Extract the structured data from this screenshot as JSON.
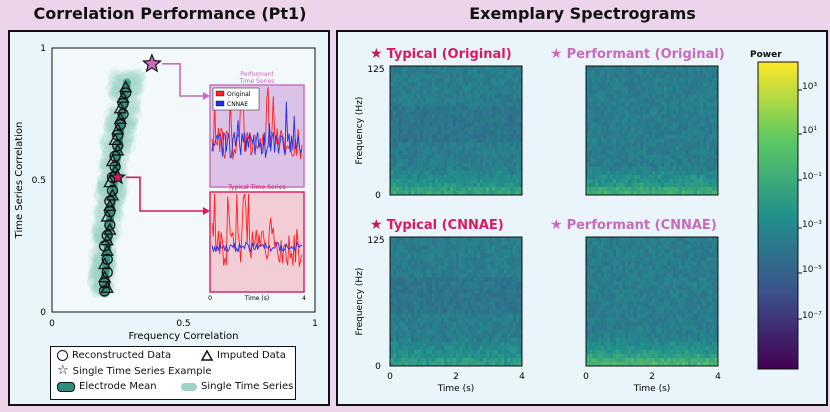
{
  "left_title": "Correlation Performance (Pt1)",
  "right_title": "Exemplary Spectrograms",
  "colors": {
    "pink": "#d81b60",
    "purple": "#c86bbd",
    "teal": "#2f8f7e",
    "cloud": "#9cd3c8",
    "orig": "#ff2020",
    "cnnae": "#2030e0"
  },
  "chart_data": [
    {
      "type": "scatter",
      "title": "Correlation Performance (Pt1)",
      "xlabel": "Frequency Correlation",
      "ylabel": "Time Series Correlation",
      "xlim": [
        0,
        1
      ],
      "ylim": [
        0,
        1
      ],
      "xticks": [
        "0",
        "0.5",
        "1"
      ],
      "yticks": [
        "0",
        "0.5",
        "1"
      ],
      "series": [
        {
          "name": "Reconstructed Data",
          "marker": "circle",
          "points": [
            [
              0.2,
              0.08
            ],
            [
              0.2,
              0.11
            ],
            [
              0.21,
              0.15
            ],
            [
              0.21,
              0.2
            ],
            [
              0.2,
              0.25
            ],
            [
              0.21,
              0.29
            ],
            [
              0.22,
              0.33
            ],
            [
              0.22,
              0.38
            ],
            [
              0.22,
              0.42
            ],
            [
              0.23,
              0.46
            ],
            [
              0.23,
              0.51
            ],
            [
              0.24,
              0.55
            ],
            [
              0.24,
              0.59
            ],
            [
              0.25,
              0.63
            ],
            [
              0.25,
              0.67
            ],
            [
              0.26,
              0.71
            ],
            [
              0.27,
              0.75
            ],
            [
              0.27,
              0.79
            ],
            [
              0.28,
              0.83
            ]
          ]
        },
        {
          "name": "Imputed Data",
          "marker": "triangle",
          "points": [
            [
              0.21,
              0.09
            ],
            [
              0.2,
              0.13
            ],
            [
              0.2,
              0.18
            ],
            [
              0.21,
              0.23
            ],
            [
              0.21,
              0.27
            ],
            [
              0.22,
              0.31
            ],
            [
              0.21,
              0.36
            ],
            [
              0.22,
              0.4
            ],
            [
              0.23,
              0.44
            ],
            [
              0.22,
              0.49
            ],
            [
              0.24,
              0.53
            ],
            [
              0.23,
              0.57
            ],
            [
              0.25,
              0.61
            ],
            [
              0.24,
              0.65
            ],
            [
              0.25,
              0.69
            ],
            [
              0.26,
              0.73
            ],
            [
              0.26,
              0.77
            ],
            [
              0.27,
              0.81
            ],
            [
              0.28,
              0.85
            ]
          ]
        }
      ],
      "examples": [
        {
          "name": "Performant",
          "x": 0.38,
          "y": 0.94,
          "color": "#c86bbd"
        },
        {
          "name": "Typical",
          "x": 0.25,
          "y": 0.51,
          "color": "#d81b60"
        }
      ],
      "legend": {
        "reconstructed": "Reconstructed Data",
        "imputed": "Imputed Data",
        "example": "Single Time Series Example",
        "mean": "Electrode Mean",
        "single": "Single Time Series"
      }
    },
    {
      "type": "line",
      "title_line1": "Performant",
      "title_line2": "Time Series",
      "legend": [
        "Original",
        "CNNAE"
      ]
    },
    {
      "type": "line",
      "title": "Typical Time Series",
      "xlabel": "Time (s)",
      "xticks": [
        "0",
        "4"
      ]
    },
    {
      "type": "heatmap",
      "colorbar_label": "Power",
      "colorbar_ticks": [
        "10³",
        "10¹",
        "10⁻¹",
        "10⁻³",
        "10⁻⁵",
        "10⁻⁷"
      ],
      "ylabel": "Frequency (Hz)",
      "xlabel": "Time (s)",
      "yticks": [
        "125",
        "0"
      ],
      "xticks": [
        "0",
        "2",
        "4"
      ],
      "panels": [
        {
          "title": "Typical (Original)",
          "kind": "typical",
          "low_band_intensity": 0.55
        },
        {
          "title": "Performant (Original)",
          "kind": "performant",
          "low_band_intensity": 0.65
        },
        {
          "title": "Typical (CNNAE)",
          "kind": "typical",
          "low_band_intensity": 0.45
        },
        {
          "title": "Performant (CNNAE)",
          "kind": "performant",
          "low_band_intensity": 0.8
        }
      ]
    }
  ]
}
